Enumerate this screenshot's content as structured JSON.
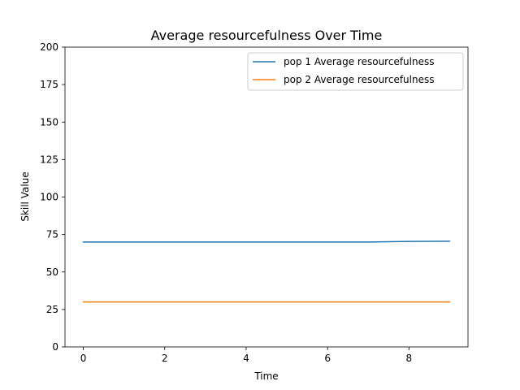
{
  "chart_data": {
    "type": "line",
    "title": "Average resourcefulness Over Time",
    "xlabel": "Time",
    "ylabel": "Skill Value",
    "xlim": [
      -0.45,
      9.45
    ],
    "ylim": [
      0,
      200
    ],
    "xticks": [
      0,
      2,
      4,
      6,
      8
    ],
    "yticks": [
      0,
      25,
      50,
      75,
      100,
      125,
      150,
      175,
      200
    ],
    "grid": false,
    "legend_position": "top-right",
    "x": [
      0,
      1,
      2,
      3,
      4,
      5,
      6,
      7,
      8,
      9
    ],
    "series": [
      {
        "name": "pop 1 Average resourcefulness",
        "color": "#1f77b4",
        "values": [
          70.0,
          70.0,
          70.0,
          70.0,
          70.0,
          70.0,
          70.0,
          70.0,
          70.4,
          70.5
        ]
      },
      {
        "name": "pop 2 Average resourcefulness",
        "color": "#ff7f0e",
        "values": [
          30.0,
          30.0,
          30.0,
          30.0,
          30.0,
          30.0,
          30.0,
          30.0,
          30.0,
          30.0
        ]
      }
    ]
  }
}
